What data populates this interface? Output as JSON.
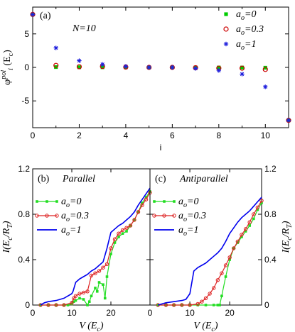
{
  "chart_data": [
    {
      "type": "scatter",
      "panel_label": "(a)",
      "annotation": "N=10",
      "xlabel": "i",
      "ylabel_main": "φ",
      "ylabel_sub": "i",
      "ylabel_sup": "pol",
      "ylabel_unit": "(E",
      "ylabel_unit_sub": "c",
      "ylabel_unit_close": ")",
      "xlim": [
        0,
        11
      ],
      "ylim": [
        -9,
        9
      ],
      "xticks": [
        0,
        2,
        4,
        6,
        8,
        10
      ],
      "yticks": [
        -5,
        0,
        5
      ],
      "grid": false,
      "legend_position": "top-right",
      "series": [
        {
          "name": "a_o=0",
          "legend_main": "a",
          "legend_sub": "o",
          "legend_tail": "=0",
          "color": "#00cc00",
          "marker": "square",
          "x": [
            0,
            1,
            2,
            3,
            4,
            5,
            6,
            7,
            8,
            9,
            10,
            11
          ],
          "y": [
            7.9,
            0.05,
            0.02,
            0.02,
            0.01,
            0.0,
            0.0,
            -0.01,
            -0.02,
            -0.02,
            -0.05,
            -7.9
          ]
        },
        {
          "name": "a_o=0.3",
          "legend_main": "a",
          "legend_sub": "o",
          "legend_tail": "=0.3",
          "color": "#cc0000",
          "marker": "circle",
          "x": [
            0,
            1,
            2,
            3,
            4,
            5,
            6,
            7,
            8,
            9,
            10,
            11
          ],
          "y": [
            7.9,
            0.3,
            0.1,
            0.15,
            0.05,
            0.0,
            0.0,
            -0.05,
            -0.12,
            -0.12,
            -0.3,
            -7.9
          ]
        },
        {
          "name": "a_o=1",
          "legend_main": "a",
          "legend_sub": "o",
          "legend_tail": "=1",
          "color": "#2222dd",
          "marker": "star",
          "x": [
            0,
            1,
            2,
            3,
            4,
            5,
            6,
            7,
            8,
            9,
            10,
            11
          ],
          "y": [
            7.9,
            2.9,
            1.0,
            0.45,
            0.15,
            0.0,
            0.0,
            -0.15,
            -0.45,
            -1.0,
            -2.9,
            -7.9
          ]
        }
      ]
    },
    {
      "type": "line",
      "panel_label": "(b)",
      "title": "Parallel",
      "xlabel_main": "V (E",
      "xlabel_sub": "c",
      "xlabel_close": ")",
      "ylabel_main": "I(E",
      "ylabel_sub1": "c",
      "ylabel_mid": "/R",
      "ylabel_sub2": "T",
      "ylabel_close": ")",
      "xlim": [
        0,
        30
      ],
      "ylim": [
        0,
        1.2
      ],
      "xticks": [
        0,
        10,
        20
      ],
      "xtick_labels": [
        "0",
        "10",
        "20"
      ],
      "yticks": [
        0,
        0.4,
        0.8,
        1.2
      ],
      "ytick_labels": [
        "0",
        "0.4",
        "0.8",
        "1.2"
      ],
      "legend_position": "upper-left",
      "series": [
        {
          "name": "a_o=0",
          "legend_main": "a",
          "legend_sub": "o",
          "legend_tail": "=0",
          "color": "#22dd22",
          "marker": "square",
          "x": [
            2,
            4,
            6,
            8,
            9,
            10,
            10.5,
            11,
            12,
            13,
            14,
            14.5,
            15,
            16,
            16.5,
            17,
            18,
            18.5,
            19,
            20,
            21,
            22,
            23,
            24,
            25,
            26,
            27,
            28,
            29,
            30
          ],
          "y": [
            0,
            0,
            0,
            0,
            0,
            0.01,
            0.03,
            0.04,
            0.06,
            0.05,
            0.0,
            0.03,
            0.08,
            0.15,
            0.12,
            0.2,
            0.18,
            0.06,
            0.25,
            0.45,
            0.55,
            0.6,
            0.63,
            0.65,
            0.7,
            0.75,
            0.82,
            0.9,
            0.95,
            1.0
          ]
        },
        {
          "name": "a_o=0.3",
          "legend_main": "a",
          "legend_sub": "o",
          "legend_tail": "=0.3",
          "color": "#dd2222",
          "marker": "circle",
          "x": [
            2,
            4,
            6,
            8,
            10,
            10.5,
            11,
            12,
            13,
            14,
            15,
            16,
            17,
            18,
            19,
            20,
            21,
            22,
            23,
            24,
            25,
            26,
            27,
            28,
            29,
            30
          ],
          "y": [
            0,
            0,
            0,
            0,
            0.02,
            0.06,
            0.08,
            0.1,
            0.11,
            0.12,
            0.26,
            0.28,
            0.3,
            0.33,
            0.36,
            0.5,
            0.58,
            0.63,
            0.66,
            0.68,
            0.7,
            0.75,
            0.82,
            0.88,
            0.93,
            0.99
          ]
        },
        {
          "name": "a_o=1",
          "legend_main": "a",
          "legend_sub": "o",
          "legend_tail": "=1",
          "color": "#0000ee",
          "marker": "none",
          "x": [
            2,
            3,
            4,
            6,
            8,
            10,
            10.3,
            11,
            12,
            13,
            14,
            15,
            16,
            17,
            18,
            19,
            20,
            21,
            22,
            23,
            24,
            25,
            26,
            27,
            28,
            29,
            30
          ],
          "y": [
            0,
            0.02,
            0.03,
            0.04,
            0.06,
            0.1,
            0.12,
            0.2,
            0.23,
            0.25,
            0.27,
            0.3,
            0.32,
            0.35,
            0.38,
            0.5,
            0.64,
            0.67,
            0.7,
            0.72,
            0.75,
            0.78,
            0.82,
            0.88,
            0.93,
            0.98,
            1.03
          ]
        }
      ]
    },
    {
      "type": "line",
      "panel_label": "(c)",
      "title": "Antiparallel",
      "xlabel_main": "V (E",
      "xlabel_sub": "c",
      "xlabel_close": ")",
      "ylabel_main": "I(E",
      "ylabel_sub1": "c",
      "ylabel_mid": "/R",
      "ylabel_sub2": "T",
      "ylabel_close": ")",
      "xlim": [
        0,
        28
      ],
      "ylim": [
        0,
        1.2
      ],
      "xticks": [
        0,
        10,
        20
      ],
      "xtick_labels": [
        "0",
        "10",
        "20"
      ],
      "yticks": [
        0,
        0.4,
        0.8,
        1.2
      ],
      "ytick_labels": [
        "0",
        "0.4",
        "0.8",
        "1.2"
      ],
      "legend_position": "upper-left",
      "series": [
        {
          "name": "a_o=0",
          "legend_main": "a",
          "legend_sub": "o",
          "legend_tail": "=0",
          "color": "#22dd22",
          "marker": "square",
          "x": [
            2,
            4,
            6,
            8,
            10,
            12,
            14,
            16,
            17,
            17.5,
            18,
            19,
            20,
            21,
            22,
            23,
            24,
            25,
            26,
            27,
            28
          ],
          "y": [
            0,
            0,
            0,
            0,
            0,
            0,
            0,
            0,
            0,
            0.0,
            0.08,
            0.25,
            0.4,
            0.5,
            0.55,
            0.6,
            0.65,
            0.7,
            0.76,
            0.84,
            0.9
          ]
        },
        {
          "name": "a_o=0.3",
          "legend_main": "a",
          "legend_sub": "o",
          "legend_tail": "=0.3",
          "color": "#dd2222",
          "marker": "circle",
          "x": [
            2,
            4,
            6,
            8,
            10,
            12,
            13,
            14,
            15,
            16,
            17,
            18,
            19,
            20,
            21,
            22,
            23,
            24,
            25,
            26,
            27,
            28
          ],
          "y": [
            0,
            0,
            0,
            0,
            0,
            0.01,
            0.03,
            0.06,
            0.1,
            0.15,
            0.22,
            0.28,
            0.35,
            0.42,
            0.5,
            0.56,
            0.62,
            0.67,
            0.73,
            0.8,
            0.86,
            0.92
          ]
        },
        {
          "name": "a_o=1",
          "legend_main": "a",
          "legend_sub": "o",
          "legend_tail": "=1",
          "color": "#0000ee",
          "marker": "none",
          "x": [
            2,
            4,
            6,
            8,
            9,
            10,
            10.5,
            11,
            12,
            13,
            14,
            15,
            16,
            17,
            18,
            19,
            20,
            21,
            22,
            23,
            24,
            25,
            26,
            27,
            28
          ],
          "y": [
            0.0,
            0.02,
            0.03,
            0.04,
            0.05,
            0.1,
            0.2,
            0.3,
            0.33,
            0.35,
            0.37,
            0.4,
            0.43,
            0.46,
            0.5,
            0.56,
            0.63,
            0.68,
            0.73,
            0.77,
            0.8,
            0.83,
            0.87,
            0.91,
            0.95
          ]
        }
      ]
    }
  ]
}
